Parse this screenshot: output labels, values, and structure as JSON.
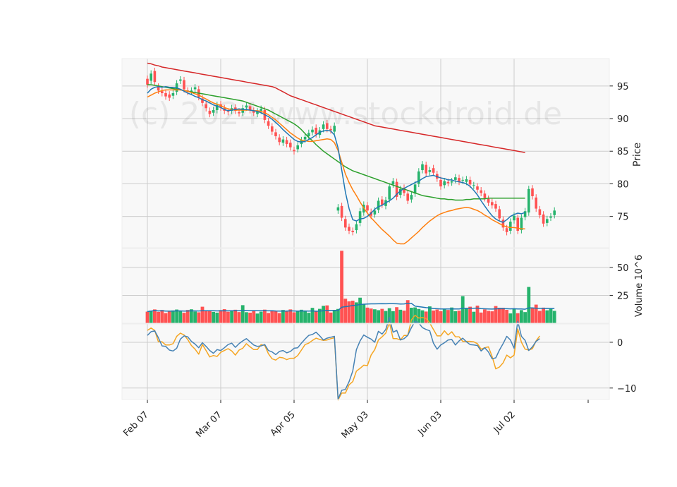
{
  "chart_data": {
    "type": "candlestick",
    "watermark": "(c) 2024 www.stockdroid.de",
    "x_tick_labels": [
      "Feb 07",
      "Mar 07",
      "Apr 05",
      "May 03",
      "Jun 03",
      "Jul 02"
    ],
    "x_tick_index": [
      0,
      20,
      40,
      60,
      80,
      100
    ],
    "price_panel": {
      "ylabel": "Price",
      "ylim": [
        70.2,
        99.2
      ],
      "y_ticks": [
        75,
        80,
        85,
        90,
        95
      ],
      "moving_averages": [
        {
          "color": "#1f77b4",
          "period": "short"
        },
        {
          "color": "#ff7f0e",
          "period": "medium"
        },
        {
          "color": "#2ca02c",
          "period": "long"
        },
        {
          "color": "#d62728",
          "period": "longest"
        }
      ]
    },
    "volume_panel": {
      "ylabel": "Volume  10^6",
      "ylim": [
        0,
        67
      ],
      "y_ticks": [
        25,
        50
      ]
    },
    "indicator_panel": {
      "ylim": [
        -12.5,
        4
      ],
      "y_ticks": [
        0,
        -10
      ],
      "y_tick_labels": [
        "0",
        "−10"
      ],
      "line_colors": [
        "#4682b4",
        "#f5a623"
      ]
    },
    "colors": {
      "up": "#26b36c",
      "down": "#ff5252",
      "grid": "#cccccc",
      "panel_bg": "#f8f8f8"
    },
    "close": [
      95.2,
      96.9,
      95.6,
      94.3,
      93.9,
      93.4,
      93.2,
      93.9,
      95.4,
      96.0,
      94.5,
      94.1,
      94.3,
      94.8,
      93.3,
      92.4,
      91.6,
      90.7,
      91.3,
      92.1,
      91.7,
      91.2,
      91.0,
      91.6,
      91.2,
      90.8,
      91.6,
      92.0,
      91.3,
      90.9,
      91.1,
      91.5,
      89.8,
      88.9,
      88.0,
      87.3,
      86.4,
      86.8,
      86.1,
      85.6,
      85.0,
      85.9,
      86.7,
      87.2,
      87.8,
      88.3,
      87.6,
      88.2,
      89.1,
      88.4,
      88.2,
      88.9,
      76.4,
      74.8,
      73.3,
      72.8,
      72.6,
      73.8,
      75.8,
      76.8,
      75.9,
      75.1,
      75.9,
      77.4,
      76.8,
      77.5,
      79.6,
      80.4,
      78.0,
      79.2,
      78.6,
      77.4,
      78.3,
      79.9,
      81.9,
      83.0,
      81.6,
      82.1,
      81.7,
      80.8,
      79.6,
      80.4,
      80.1,
      80.4,
      81.0,
      80.3,
      80.6,
      80.7,
      79.9,
      79.8,
      79.1,
      78.6,
      77.8,
      77.1,
      76.7,
      76.2,
      74.7,
      73.3,
      72.6,
      74.2,
      75.1,
      72.8,
      74.8,
      75.8,
      79.2,
      78.1,
      76.2,
      75.2,
      73.9,
      74.6,
      75.0,
      75.9
    ],
    "open": [
      96.1,
      95.8,
      97.3,
      94.9,
      94.2,
      93.9,
      93.7,
      93.5,
      94.1,
      95.8,
      95.9,
      94.3,
      94.1,
      94.5,
      94.5,
      93.1,
      92.2,
      91.2,
      90.9,
      91.3,
      92.2,
      91.6,
      91.1,
      91.2,
      91.7,
      91.0,
      90.9,
      91.7,
      91.9,
      91.2,
      90.7,
      91.2,
      91.3,
      89.6,
      88.8,
      87.9,
      87.1,
      86.3,
      86.7,
      86.3,
      85.2,
      85.3,
      86.1,
      86.8,
      87.3,
      87.9,
      88.6,
      87.5,
      88.4,
      89.3,
      88.4,
      88.0,
      75.9,
      76.6,
      74.6,
      73.4,
      72.8,
      72.9,
      74.0,
      75.6,
      76.7,
      75.7,
      75.3,
      76.0,
      77.6,
      76.6,
      77.6,
      79.9,
      80.3,
      78.3,
      79.4,
      78.5,
      77.6,
      78.5,
      80.0,
      82.1,
      82.9,
      81.8,
      82.4,
      81.5,
      80.6,
      79.8,
      80.3,
      80.2,
      80.6,
      80.9,
      80.5,
      80.3,
      80.6,
      79.7,
      79.6,
      79.0,
      78.5,
      77.7,
      77.2,
      76.9,
      76.1,
      74.5,
      73.2,
      72.8,
      74.4,
      74.8,
      72.9,
      74.9,
      75.6,
      79.3,
      77.9,
      76.1,
      75.3,
      74.0,
      74.8,
      75.2
    ],
    "volume": [
      10.4,
      11.3,
      12.4,
      10.2,
      11.9,
      9.1,
      10.6,
      11.5,
      12.3,
      10.8,
      9.4,
      11.9,
      12.5,
      10.5,
      9.8,
      14.8,
      10.9,
      11.6,
      10.2,
      9.5,
      11.8,
      12.6,
      10.3,
      11.4,
      12.1,
      10.0,
      16.2,
      9.9,
      9.5,
      11.3,
      8.7,
      10.4,
      12.2,
      9.2,
      11.5,
      10.8,
      9.1,
      11.9,
      10.6,
      12.4,
      9.8,
      10.9,
      12.1,
      11.0,
      9.4,
      13.8,
      10.6,
      12.9,
      15.6,
      16.0,
      9.6,
      11.2,
      12.8,
      64.9,
      22.0,
      19.6,
      20.2,
      18.7,
      22.9,
      16.8,
      14.0,
      13.2,
      12.5,
      11.7,
      12.9,
      11.0,
      13.5,
      10.8,
      14.4,
      12.1,
      11.3,
      20.7,
      13.9,
      14.2,
      12.8,
      11.6,
      10.5,
      15.1,
      11.4,
      12.3,
      10.8,
      12.7,
      11.9,
      14.1,
      10.8,
      11.3,
      24.3,
      12.9,
      14.8,
      10.3,
      15.8,
      9.6,
      12.4,
      11.1,
      10.7,
      15.4,
      13.9,
      13.9,
      12.0,
      8.8,
      13.2,
      9.0,
      11.8,
      10.0,
      32.5,
      13.5,
      16.7,
      11.1,
      14.0,
      11.6,
      13.0,
      11.1
    ],
    "ma_blue": [
      93.9,
      94.5,
      94.8,
      94.9,
      94.8,
      94.9,
      94.8,
      94.8,
      94.7,
      94.5,
      94.2,
      93.9,
      93.7,
      93.4,
      93.2,
      92.9,
      92.7,
      92.4,
      92.1,
      91.9,
      91.7,
      91.4,
      91.2,
      91.3,
      91.4,
      91.5,
      91.4,
      91.4,
      91.3,
      91.2,
      91.1,
      90.9,
      90.6,
      90.3,
      89.9,
      89.4,
      88.9,
      88.3,
      87.8,
      87.3,
      86.8,
      86.5,
      86.4,
      86.5,
      86.8,
      87.1,
      87.5,
      87.9,
      88.1,
      88.2,
      88.1,
      87.5,
      85.5,
      82.1,
      78.7,
      76.2,
      74.5,
      74.3,
      74.6,
      74.7,
      75.0,
      75.5,
      76.1,
      76.5,
      76.7,
      77.1,
      77.4,
      77.8,
      78.4,
      78.9,
      79.3,
      79.6,
      79.9,
      80.2,
      80.4,
      80.8,
      81.1,
      81.2,
      81.3,
      81.1,
      80.9,
      80.8,
      80.6,
      80.6,
      80.4,
      80.3,
      80.2,
      80.0,
      79.6,
      79.0,
      78.3,
      77.4,
      76.6,
      75.8,
      75.1,
      74.6,
      74.3,
      74.1,
      74.5,
      75.0,
      75.3,
      75.5,
      75.4,
      75.6
    ],
    "ma_orange": [
      93.3,
      93.6,
      93.9,
      94.1,
      94.3,
      94.4,
      94.4,
      94.4,
      94.4,
      94.4,
      94.3,
      94.2,
      94.0,
      93.8,
      93.6,
      93.3,
      93.0,
      92.7,
      92.4,
      92.2,
      92.0,
      91.7,
      91.5,
      91.4,
      91.3,
      91.3,
      91.3,
      91.3,
      91.3,
      91.2,
      91.2,
      91.1,
      90.9,
      90.6,
      90.2,
      89.8,
      89.3,
      88.8,
      88.3,
      87.8,
      87.4,
      87.0,
      86.7,
      86.6,
      86.5,
      86.5,
      86.6,
      86.7,
      86.8,
      86.9,
      86.8,
      86.3,
      85.1,
      83.3,
      81.5,
      80.2,
      79.1,
      78.2,
      77.2,
      76.3,
      75.5,
      74.8,
      74.2,
      73.6,
      73.0,
      72.5,
      72.0,
      71.4,
      70.9,
      70.8,
      70.8,
      71.2,
      71.7,
      72.2,
      72.7,
      73.3,
      73.8,
      74.3,
      74.7,
      75.1,
      75.4,
      75.6,
      75.8,
      75.9,
      76.1,
      76.2,
      76.3,
      76.4,
      76.3,
      76.1,
      75.9,
      75.6,
      75.2,
      74.9,
      74.5,
      74.2,
      73.9,
      73.6,
      73.4,
      73.3,
      73.3,
      73.2,
      73.1,
      73.1
    ],
    "ma_green": [
      95.2,
      95.2,
      95.1,
      95.0,
      94.9,
      94.8,
      94.7,
      94.6,
      94.5,
      94.4,
      94.3,
      94.2,
      94.1,
      94.0,
      93.9,
      93.8,
      93.7,
      93.6,
      93.5,
      93.4,
      93.3,
      93.2,
      93.1,
      93.0,
      92.9,
      92.8,
      92.7,
      92.5,
      92.3,
      92.1,
      91.9,
      91.7,
      91.5,
      91.3,
      91.0,
      90.7,
      90.4,
      90.1,
      89.8,
      89.5,
      89.2,
      88.8,
      88.3,
      87.7,
      87.1,
      86.6,
      86.0,
      85.5,
      85.0,
      84.6,
      84.2,
      83.8,
      83.4,
      83.0,
      82.6,
      82.3,
      82.0,
      81.8,
      81.6,
      81.4,
      81.2,
      81.0,
      80.8,
      80.6,
      80.4,
      80.2,
      80.0,
      79.8,
      79.6,
      79.4,
      79.2,
      79.0,
      78.8,
      78.6,
      78.4,
      78.2,
      78.1,
      78.0,
      77.9,
      77.8,
      77.7,
      77.7,
      77.6,
      77.6,
      77.5,
      77.5,
      77.5,
      77.6,
      77.6,
      77.7,
      77.7,
      77.7,
      77.7,
      77.8,
      77.8,
      77.8,
      77.8,
      77.8,
      77.8,
      77.8,
      77.8,
      77.8,
      77.8,
      77.8
    ],
    "ma_red": [
      98.5,
      98.4,
      98.2,
      98.1,
      97.9,
      97.8,
      97.7,
      97.6,
      97.5,
      97.4,
      97.3,
      97.2,
      97.1,
      97.0,
      96.9,
      96.8,
      96.7,
      96.6,
      96.5,
      96.4,
      96.3,
      96.2,
      96.1,
      96.0,
      95.9,
      95.8,
      95.7,
      95.6,
      95.5,
      95.4,
      95.3,
      95.2,
      95.1,
      95.0,
      94.9,
      94.7,
      94.4,
      94.1,
      93.8,
      93.5,
      93.3,
      93.1,
      92.9,
      92.7,
      92.5,
      92.3,
      92.1,
      91.9,
      91.7,
      91.5,
      91.3,
      91.1,
      90.9,
      90.7,
      90.5,
      90.3,
      90.1,
      89.9,
      89.7,
      89.5,
      89.3,
      89.1,
      88.9,
      88.8,
      88.7,
      88.6,
      88.5,
      88.4,
      88.3,
      88.2,
      88.1,
      88.0,
      87.9,
      87.8,
      87.7,
      87.6,
      87.5,
      87.4,
      87.3,
      87.2,
      87.1,
      87.0,
      86.9,
      86.8,
      86.7,
      86.6,
      86.5,
      86.4,
      86.3,
      86.2,
      86.1,
      86.0,
      85.9,
      85.8,
      85.7,
      85.6,
      85.5,
      85.4,
      85.3,
      85.2,
      85.1,
      85.0,
      84.9,
      84.8
    ],
    "ind_blue": [
      1.5,
      2.3,
      2.5,
      1.0,
      -0.8,
      -0.9,
      -1.7,
      -1.9,
      -1.3,
      0.7,
      1.4,
      1.2,
      0.2,
      -0.4,
      -1.2,
      -0.1,
      -0.9,
      -1.8,
      -2.4,
      -1.6,
      -1.8,
      -1.2,
      -0.5,
      -0.2,
      -1.1,
      -0.3,
      0.3,
      0.8,
      0.1,
      -0.6,
      -0.9,
      -0.8,
      -0.5,
      -1.8,
      -2.1,
      -2.7,
      -2.0,
      -1.8,
      -2.3,
      -2.0,
      -1.3,
      -1.2,
      -0.2,
      0.7,
      1.5,
      1.7,
      2.2,
      1.4,
      0.5,
      0.9,
      1.1,
      1.3,
      -12.4,
      -10.5,
      -10.3,
      -8.6,
      -6.3,
      -1.6,
      0.3,
      1.6,
      1.1,
      0.7,
      0.0,
      2.4,
      1.8,
      2.8,
      5.4,
      2.2,
      2.6,
      0.5,
      0.8,
      1.5,
      3.2,
      4.6,
      4.2,
      3.2,
      2.8,
      2.5,
      -0.2,
      -1.5,
      -0.6,
      -0.1,
      0.5,
      0.6,
      -0.6,
      0.3,
      0.9,
      0.1,
      -0.5,
      -0.6,
      -0.7,
      -1.9,
      -1.2,
      -2.1,
      -3.6,
      -3.4,
      -1.7,
      -0.3,
      1.3,
      0.5,
      -1.3,
      4.6,
      1.3,
      0.4,
      -1.8,
      -1.0,
      0.2,
      0.8
    ],
    "ind_orange": [
      2.6,
      3.1,
      2.6,
      0.1,
      0.1,
      -0.6,
      -0.6,
      -0.3,
      1.3,
      2.0,
      1.6,
      0.6,
      -0.7,
      -1.5,
      -2.6,
      -0.5,
      -1.8,
      -3.2,
      -2.9,
      -3.1,
      -2.2,
      -1.8,
      -1.4,
      -1.9,
      -2.8,
      -1.7,
      -1.3,
      -0.3,
      -1.0,
      -1.6,
      -1.6,
      -0.5,
      -0.7,
      -2.5,
      -3.6,
      -3.9,
      -3.3,
      -3.4,
      -3.8,
      -3.5,
      -3.5,
      -2.9,
      -1.7,
      -0.5,
      -0.2,
      0.4,
      0.9,
      0.6,
      0.4,
      0.5,
      0.8,
      1.0,
      -12.6,
      -11.1,
      -11.1,
      -9.3,
      -8.6,
      -6.3,
      -5.7,
      -5.0,
      -5.1,
      -2.8,
      -1.6,
      0.5,
      1.2,
      2.0,
      4.3,
      0.8,
      0.8,
      0.5,
      1.5,
      1.5,
      4.9,
      5.9,
      5.3,
      5.4,
      5.2,
      4.2,
      2.8,
      1.4,
      1.4,
      2.5,
      1.6,
      2.3,
      1.2,
      1.2,
      0.2,
      0.2,
      0.2,
      0.1,
      -0.3,
      -1.5,
      -1.2,
      -1.0,
      -3.1,
      -5.8,
      -5.4,
      -4.5,
      -2.8,
      -3.4,
      -2.8,
      2.9,
      0.0,
      -1.5,
      -1.7,
      -1.4,
      0.3,
      1.4
    ]
  }
}
